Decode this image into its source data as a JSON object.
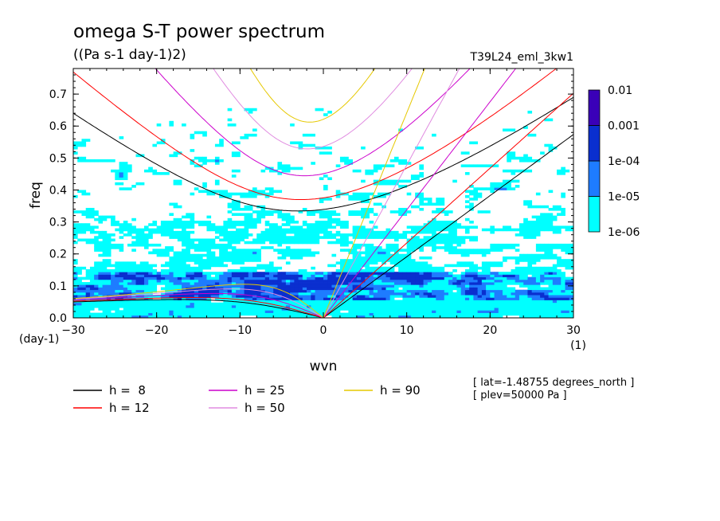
{
  "chart_data": {
    "type": "heatmap",
    "title": "omega S-T power spectrum",
    "subtitle": "((Pa s-1 day-1)2)",
    "dataset_label": "T39L24_eml_3kw1",
    "xlabel": "wvn",
    "xunits": "(1)",
    "ylabel": "freq",
    "yunits": "(day-1)",
    "xlim": [
      -30,
      30
    ],
    "ylim": [
      0,
      0.78
    ],
    "xticks": [
      -30,
      -20,
      -10,
      0,
      10,
      20,
      30
    ],
    "yticks": [
      0.0,
      0.1,
      0.2,
      0.3,
      0.4,
      0.5,
      0.6,
      0.7
    ],
    "ytick_labels": [
      "0.0",
      "0.1",
      "0.2",
      "0.3",
      "0.4",
      "0.5",
      "0.6",
      "0.7"
    ],
    "xtick_labels": [
      "-30",
      "-20",
      "-10",
      "0",
      "10",
      "20",
      "30"
    ],
    "colorbar": {
      "levels": [
        "1e-06",
        "1e-05",
        "1e-04",
        "0.001",
        "0.01"
      ],
      "colors": [
        "#00ffff",
        "#1e7cff",
        "#0a2fcf",
        "#3a00b8"
      ]
    },
    "power_regions": {
      "cyan_band_max_freq": 0.33,
      "blue_blob_freq_range": [
        0.02,
        0.13
      ],
      "sparse_high_freq_max": 0.65
    },
    "dispersion_curves": [
      {
        "name": "h =  8",
        "h": 8,
        "color": "#000000"
      },
      {
        "name": "h = 12",
        "h": 12,
        "color": "#ff0000"
      },
      {
        "name": "h = 25",
        "h": 25,
        "color": "#cc00cc"
      },
      {
        "name": "h = 50",
        "h": 50,
        "color": "#e08ce0"
      },
      {
        "name": "h = 90",
        "h": 90,
        "color": "#e6c800"
      }
    ],
    "annotations": [
      "[ lat=-1.48755 degrees_north ]",
      "[ plev=50000 Pa ]"
    ]
  }
}
